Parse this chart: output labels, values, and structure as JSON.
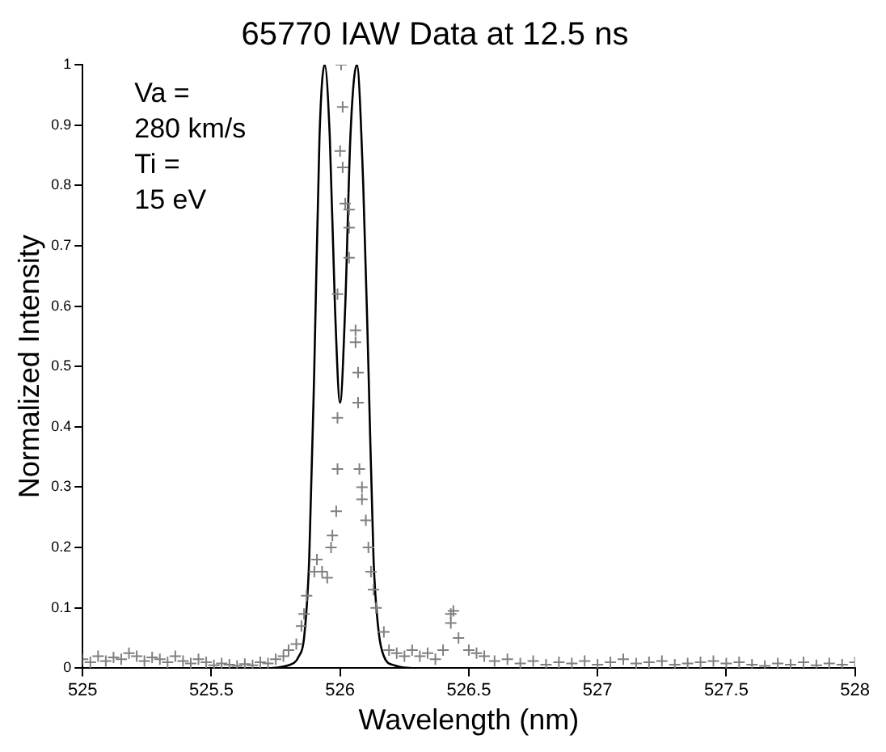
{
  "chart_data": {
    "type": "scatter",
    "title": "65770 IAW Data at 12.5 ns",
    "xlabel": "Wavelength (nm)",
    "ylabel": "Normalized Intensity",
    "xlim": [
      525,
      528
    ],
    "xticks": [
      525,
      525.5,
      526,
      526.5,
      527,
      527.5,
      528
    ],
    "ylim": [
      0,
      1
    ],
    "yticks": [
      0,
      0.1,
      0.2,
      0.3,
      0.4,
      0.5,
      0.6,
      0.7,
      0.8,
      0.9,
      1
    ],
    "grid": false,
    "legend": false,
    "annotations": [
      "Va =",
      "280 km/s",
      "Ti =",
      "15 eV"
    ],
    "series": [
      {
        "type": "scatter",
        "color": "#808080",
        "marker": "cross",
        "x": [
          525.0,
          525.03,
          525.06,
          525.09,
          525.12,
          525.15,
          525.18,
          525.21,
          525.24,
          525.27,
          525.3,
          525.33,
          525.36,
          525.39,
          525.42,
          525.45,
          525.48,
          525.51,
          525.54,
          525.57,
          525.6,
          525.63,
          525.66,
          525.69,
          525.72,
          525.75,
          525.78,
          525.8,
          525.83,
          525.85,
          525.86,
          525.87,
          525.9,
          525.91,
          525.93,
          525.95,
          525.965,
          525.97,
          525.985,
          525.99,
          525.99,
          525.99,
          526.0,
          526.004,
          526.01,
          526.01,
          526.02,
          526.035,
          526.035,
          526.035,
          526.06,
          526.06,
          526.07,
          526.07,
          526.075,
          526.085,
          526.085,
          526.1,
          526.11,
          526.12,
          526.13,
          526.14,
          526.17,
          526.19,
          526.22,
          526.25,
          526.28,
          526.31,
          526.34,
          526.37,
          526.4,
          526.43,
          526.43,
          526.44,
          526.46,
          526.5,
          526.53,
          526.56,
          526.6,
          526.65,
          526.7,
          526.75,
          526.8,
          526.85,
          526.9,
          526.95,
          527.0,
          527.05,
          527.1,
          527.15,
          527.2,
          527.25,
          527.3,
          527.35,
          527.4,
          527.45,
          527.5,
          527.55,
          527.6,
          527.65,
          527.7,
          527.75,
          527.8,
          527.85,
          527.9,
          527.95,
          528.0
        ],
        "values": [
          0.015,
          0.01,
          0.02,
          0.012,
          0.018,
          0.015,
          0.025,
          0.02,
          0.012,
          0.018,
          0.015,
          0.01,
          0.02,
          0.012,
          0.008,
          0.015,
          0.01,
          0.005,
          0.008,
          0.006,
          0.004,
          0.007,
          0.005,
          0.01,
          0.008,
          0.015,
          0.02,
          0.03,
          0.04,
          0.07,
          0.09,
          0.12,
          0.16,
          0.18,
          0.16,
          0.15,
          0.2,
          0.22,
          0.26,
          0.33,
          0.415,
          0.62,
          0.857,
          1.0,
          0.93,
          0.83,
          0.77,
          0.76,
          0.73,
          0.68,
          0.56,
          0.54,
          0.49,
          0.44,
          0.33,
          0.3,
          0.28,
          0.245,
          0.2,
          0.16,
          0.13,
          0.1,
          0.06,
          0.03,
          0.025,
          0.02,
          0.03,
          0.02,
          0.025,
          0.015,
          0.03,
          0.09,
          0.075,
          0.095,
          0.05,
          0.03,
          0.025,
          0.02,
          0.012,
          0.015,
          0.008,
          0.012,
          0.006,
          0.01,
          0.008,
          0.012,
          0.006,
          0.01,
          0.015,
          0.008,
          0.01,
          0.012,
          0.006,
          0.008,
          0.01,
          0.012,
          0.008,
          0.01,
          0.006,
          0.004,
          0.008,
          0.006,
          0.01,
          0.005,
          0.008,
          0.006,
          0.01
        ]
      },
      {
        "type": "line",
        "color": "#000000",
        "marker": "none",
        "x": [
          525.0,
          525.7,
          525.8,
          525.84,
          525.86,
          525.88,
          525.9,
          525.92,
          525.94,
          525.96,
          525.98,
          526.0,
          526.02,
          526.04,
          526.065,
          526.09,
          526.11,
          526.13,
          526.15,
          526.17,
          526.21,
          526.3,
          528.0
        ],
        "values": [
          0,
          0,
          0.005,
          0.02,
          0.05,
          0.18,
          0.5,
          0.88,
          1.0,
          0.88,
          0.6,
          0.44,
          0.6,
          0.88,
          1.0,
          0.8,
          0.5,
          0.18,
          0.06,
          0.02,
          0.005,
          0,
          0
        ]
      }
    ]
  }
}
